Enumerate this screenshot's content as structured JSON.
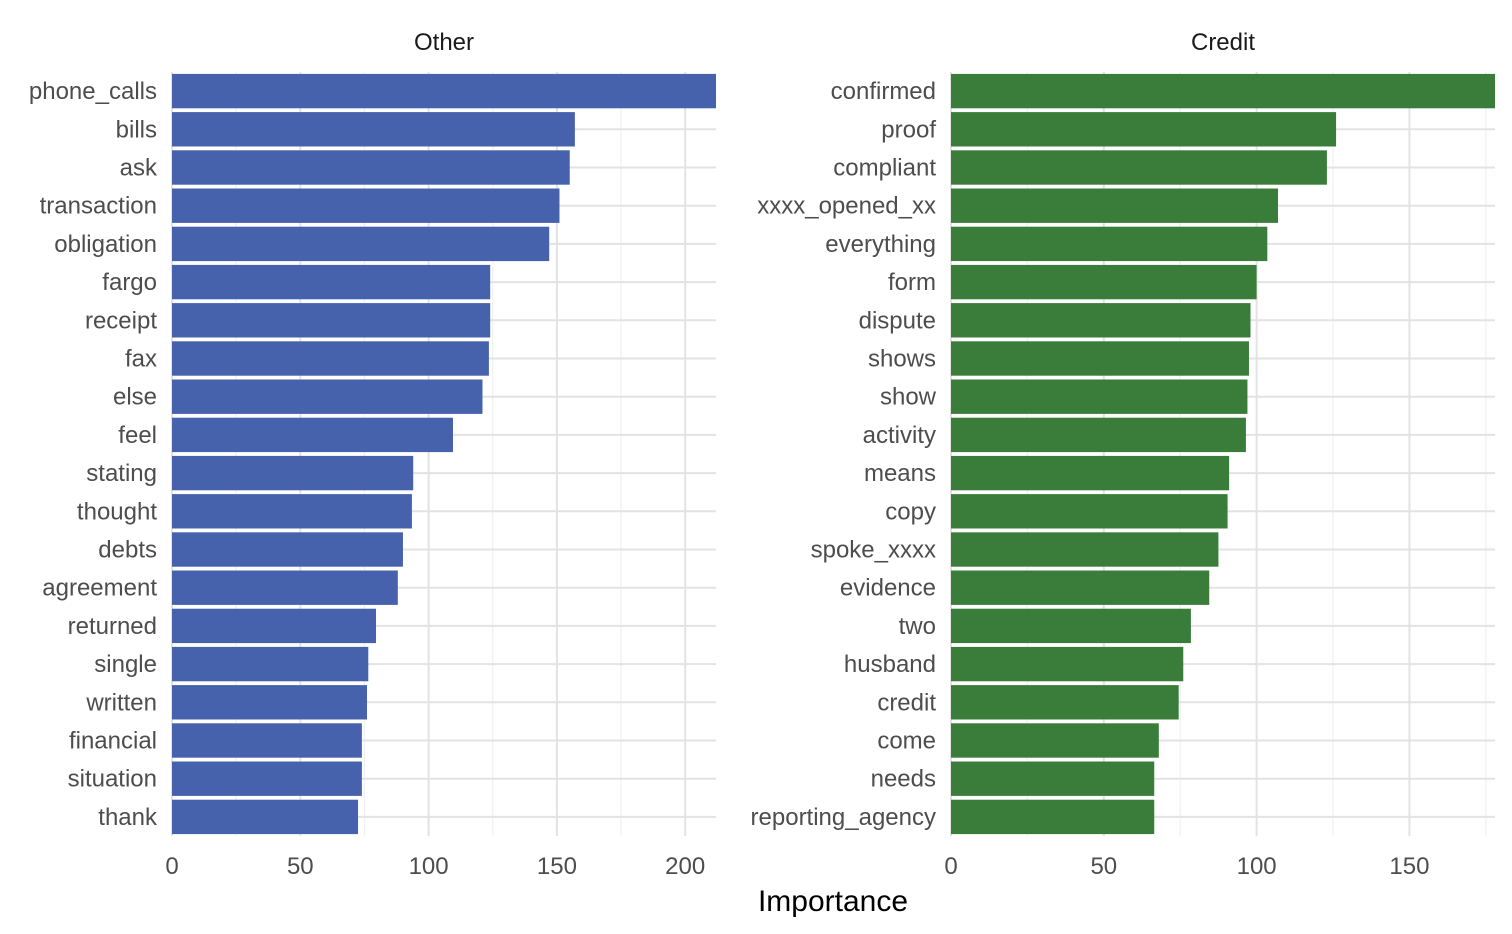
{
  "chart_data": {
    "type": "bar",
    "orientation": "horizontal",
    "xlabel": "Importance",
    "ylabel": "",
    "colors": {
      "Other": "#4662AC",
      "Credit": "#3A7D3A",
      "text": "#4d4d4d",
      "grid": "#e3e3e3"
    },
    "panels": [
      {
        "title": "Other",
        "color": "#4662AC",
        "xlim": [
          0,
          212
        ],
        "ticks": [
          0,
          50,
          100,
          150,
          200
        ],
        "categories": [
          "phone_calls",
          "bills",
          "ask",
          "transaction",
          "obligation",
          "fargo",
          "receipt",
          "fax",
          "else",
          "feel",
          "stating",
          "thought",
          "debts",
          "agreement",
          "returned",
          "single",
          "written",
          "financial",
          "situation",
          "thank"
        ],
        "values": [
          212,
          157,
          155,
          151,
          147,
          124,
          124,
          123.5,
          121,
          109.5,
          94,
          93.5,
          90,
          88,
          79.5,
          76.5,
          76,
          74,
          74,
          72.5
        ]
      },
      {
        "title": "Credit",
        "color": "#3A7D3A",
        "xlim": [
          0,
          178
        ],
        "ticks": [
          0,
          50,
          100,
          150
        ],
        "categories": [
          "confirmed",
          "proof",
          "compliant",
          "xxxx_opened_xx",
          "everything",
          "form",
          "dispute",
          "shows",
          "show",
          "activity",
          "means",
          "copy",
          "spoke_xxxx",
          "evidence",
          "two",
          "husband",
          "credit",
          "come",
          "needs",
          "reporting_agency"
        ],
        "values": [
          178,
          126,
          123,
          107,
          103.5,
          100,
          98,
          97.5,
          97,
          96.5,
          91,
          90.5,
          87.5,
          84.5,
          78.5,
          76,
          74.5,
          68,
          66.5,
          66.5
        ]
      }
    ]
  }
}
